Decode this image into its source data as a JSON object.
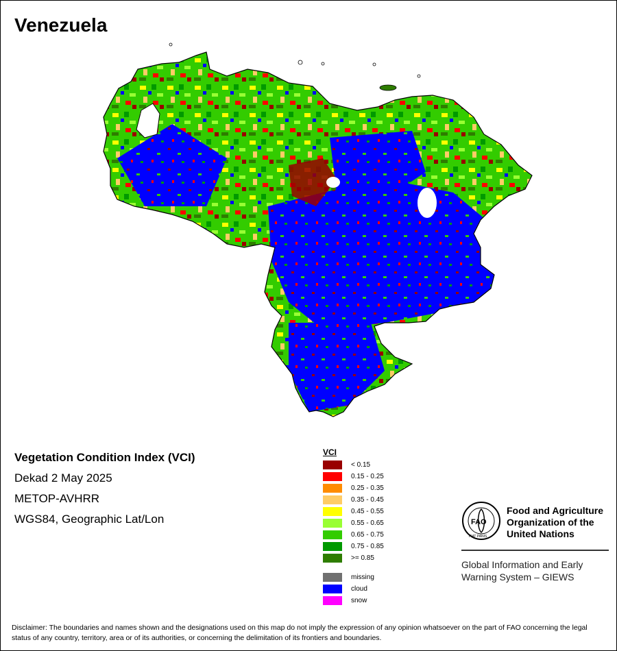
{
  "map_title": "Venezuela",
  "info": {
    "index_name": "Vegetation Condition Index (VCI)",
    "period": "Dekad 2 May 2025",
    "sensor": "METOP-AVHRR",
    "projection": "WGS84, Geographic Lat/Lon"
  },
  "legend": {
    "title": "VCI",
    "classes": [
      {
        "label": "< 0.15",
        "color": "#990000"
      },
      {
        "label": "0.15 - 0.25",
        "color": "#ff0000"
      },
      {
        "label": "0.25 - 0.35",
        "color": "#ff8c00"
      },
      {
        "label": "0.35 - 0.45",
        "color": "#ffcc66"
      },
      {
        "label": "0.45 - 0.55",
        "color": "#ffff00"
      },
      {
        "label": "0.55 - 0.65",
        "color": "#99ff33"
      },
      {
        "label": "0.65 - 0.75",
        "color": "#33cc00"
      },
      {
        "label": "0.75 - 0.85",
        "color": "#009900"
      },
      {
        "label": ">= 0.85",
        "color": "#2e7d00"
      }
    ],
    "other": [
      {
        "label": "missing",
        "color": "#707070"
      },
      {
        "label": "cloud",
        "color": "#0000ff"
      },
      {
        "label": "snow",
        "color": "#ff00ff"
      }
    ]
  },
  "organization": {
    "name_line1": "Food and Agriculture",
    "name_line2": "Organization of the",
    "name_line3": "United Nations",
    "giews_line1": "Global Information and Early",
    "giews_line2": "Warning System – GIEWS",
    "emblem_text": "FAO",
    "emblem_motto": "FIAT PANIS"
  },
  "disclaimer": "Disclaimer: The boundaries and names shown and the designations used on this map do not imply the expression of any opinion whatsoever on the part of FAO concerning the legal status of any country, territory, area or of its authorities, or concerning the delimitation of its frontiers and boundaries."
}
